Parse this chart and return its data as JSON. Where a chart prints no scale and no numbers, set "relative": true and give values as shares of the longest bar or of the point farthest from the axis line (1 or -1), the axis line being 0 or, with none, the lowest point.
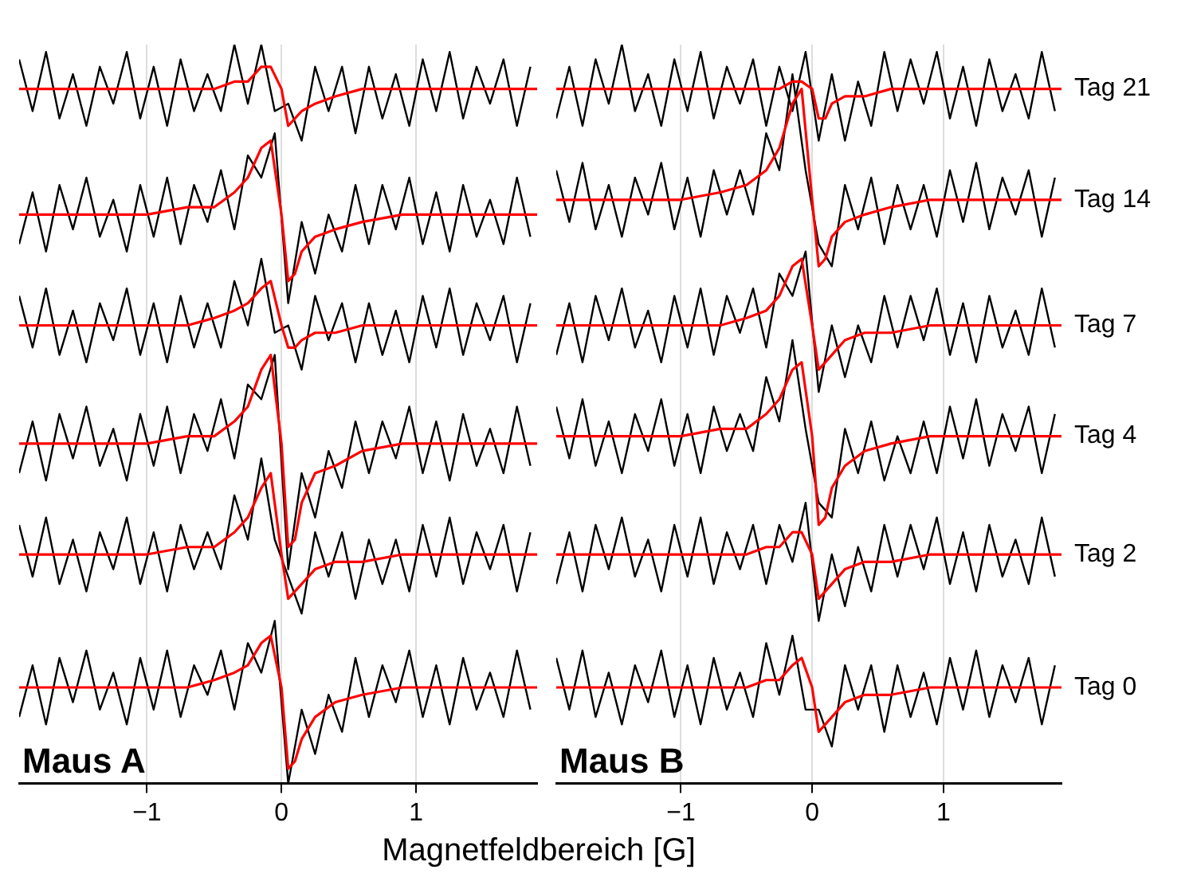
{
  "chart_data": [
    {
      "type": "line",
      "xlabel": "Magnetfeldbereich [G]",
      "x": [
        -1.95,
        -1.85,
        -1.75,
        -1.65,
        -1.55,
        -1.45,
        -1.35,
        -1.25,
        -1.15,
        -1.05,
        -0.95,
        -0.85,
        -0.75,
        -0.65,
        -0.55,
        -0.45,
        -0.35,
        -0.25,
        -0.15,
        -0.05,
        0.05,
        0.15,
        0.25,
        0.35,
        0.45,
        0.55,
        0.65,
        0.75,
        0.85,
        0.95,
        1.05,
        1.15,
        1.25,
        1.35,
        1.45,
        1.55,
        1.65,
        1.75,
        1.85
      ],
      "xlim": [
        -1.95,
        1.9
      ],
      "xticks": [
        -1,
        0,
        1
      ],
      "grid": "x",
      "relative": true,
      "annotations": [
        "Maus A"
      ],
      "series": [
        {
          "color": "#000000",
          "values": [
            0.98,
            0.91,
            0.99,
            0.9,
            0.96,
            0.89,
            0.97,
            0.92,
            0.99,
            0.9,
            0.97,
            0.89,
            0.98,
            0.91,
            0.96,
            0.91,
            1.0,
            0.92,
            1.0,
            0.91,
            0.92,
            0.87,
            0.97,
            0.91,
            0.97,
            0.88,
            0.97,
            0.9,
            0.96,
            0.89,
            0.98,
            0.91,
            0.99,
            0.9,
            0.97,
            0.92,
            0.98,
            0.89,
            0.97
          ]
        },
        {
          "color": "#ff0000",
          "x": [
            -1.95,
            -1.5,
            -1,
            -0.7,
            -0.5,
            -0.35,
            -0.25,
            -0.15,
            -0.08,
            0,
            0.05,
            0.1,
            0.15,
            0.25,
            0.4,
            0.6,
            0.9,
            1.3,
            1.9
          ],
          "values": [
            0.94,
            0.94,
            0.94,
            0.94,
            0.94,
            0.95,
            0.95,
            0.97,
            0.97,
            0.94,
            0.89,
            0.9,
            0.91,
            0.92,
            0.93,
            0.94,
            0.94,
            0.94,
            0.94
          ]
        },
        {
          "color": "#000000",
          "values": [
            0.73,
            0.8,
            0.72,
            0.81,
            0.75,
            0.82,
            0.74,
            0.79,
            0.72,
            0.81,
            0.74,
            0.82,
            0.73,
            0.81,
            0.76,
            0.83,
            0.75,
            0.85,
            0.82,
            0.88,
            0.65,
            0.76,
            0.69,
            0.77,
            0.72,
            0.81,
            0.73,
            0.81,
            0.75,
            0.82,
            0.73,
            0.8,
            0.72,
            0.81,
            0.74,
            0.79,
            0.73,
            0.82,
            0.74
          ]
        },
        {
          "color": "#ff0000",
          "x": [
            -1.95,
            -1.5,
            -1,
            -0.7,
            -0.5,
            -0.35,
            -0.25,
            -0.15,
            -0.08,
            0,
            0.05,
            0.1,
            0.15,
            0.25,
            0.4,
            0.6,
            0.9,
            1.3,
            1.9
          ],
          "values": [
            0.77,
            0.77,
            0.77,
            0.78,
            0.78,
            0.8,
            0.82,
            0.86,
            0.87,
            0.77,
            0.68,
            0.69,
            0.72,
            0.74,
            0.75,
            0.76,
            0.77,
            0.77,
            0.77
          ]
        },
        {
          "color": "#000000",
          "values": [
            0.66,
            0.59,
            0.67,
            0.58,
            0.64,
            0.57,
            0.65,
            0.6,
            0.67,
            0.58,
            0.65,
            0.57,
            0.66,
            0.59,
            0.65,
            0.59,
            0.68,
            0.62,
            0.71,
            0.61,
            0.62,
            0.56,
            0.66,
            0.6,
            0.65,
            0.57,
            0.65,
            0.58,
            0.64,
            0.57,
            0.66,
            0.59,
            0.67,
            0.58,
            0.65,
            0.6,
            0.66,
            0.57,
            0.65
          ]
        },
        {
          "color": "#ff0000",
          "x": [
            -1.95,
            -1.5,
            -1,
            -0.7,
            -0.5,
            -0.35,
            -0.25,
            -0.15,
            -0.08,
            0,
            0.05,
            0.1,
            0.15,
            0.25,
            0.4,
            0.6,
            0.9,
            1.3,
            1.9
          ],
          "values": [
            0.62,
            0.62,
            0.62,
            0.62,
            0.63,
            0.64,
            0.65,
            0.67,
            0.68,
            0.62,
            0.59,
            0.59,
            0.6,
            0.61,
            0.61,
            0.62,
            0.62,
            0.62,
            0.62
          ]
        },
        {
          "color": "#000000",
          "values": [
            0.42,
            0.49,
            0.41,
            0.5,
            0.44,
            0.51,
            0.43,
            0.48,
            0.41,
            0.5,
            0.43,
            0.51,
            0.42,
            0.5,
            0.45,
            0.52,
            0.44,
            0.54,
            0.52,
            0.58,
            0.29,
            0.42,
            0.36,
            0.45,
            0.4,
            0.49,
            0.42,
            0.49,
            0.44,
            0.51,
            0.42,
            0.49,
            0.41,
            0.5,
            0.43,
            0.48,
            0.42,
            0.51,
            0.43
          ]
        },
        {
          "color": "#ff0000",
          "x": [
            -1.95,
            -1.5,
            -1,
            -0.7,
            -0.5,
            -0.35,
            -0.25,
            -0.15,
            -0.08,
            0,
            0.05,
            0.1,
            0.15,
            0.25,
            0.4,
            0.6,
            0.9,
            1.3,
            1.9
          ],
          "values": [
            0.46,
            0.46,
            0.46,
            0.47,
            0.47,
            0.49,
            0.51,
            0.56,
            0.58,
            0.46,
            0.32,
            0.33,
            0.38,
            0.42,
            0.43,
            0.45,
            0.46,
            0.46,
            0.46
          ]
        },
        {
          "color": "#000000",
          "values": [
            0.35,
            0.28,
            0.36,
            0.27,
            0.33,
            0.26,
            0.34,
            0.29,
            0.36,
            0.27,
            0.34,
            0.26,
            0.35,
            0.29,
            0.34,
            0.29,
            0.39,
            0.33,
            0.44,
            0.33,
            0.28,
            0.23,
            0.34,
            0.28,
            0.34,
            0.25,
            0.33,
            0.27,
            0.33,
            0.26,
            0.35,
            0.28,
            0.36,
            0.27,
            0.34,
            0.29,
            0.35,
            0.26,
            0.34
          ]
        },
        {
          "color": "#ff0000",
          "x": [
            -1.95,
            -1.5,
            -1,
            -0.7,
            -0.5,
            -0.35,
            -0.25,
            -0.15,
            -0.08,
            0,
            0.05,
            0.1,
            0.15,
            0.25,
            0.4,
            0.6,
            0.9,
            1.3,
            1.9
          ],
          "values": [
            0.31,
            0.31,
            0.31,
            0.32,
            0.32,
            0.34,
            0.36,
            0.4,
            0.42,
            0.31,
            0.25,
            0.26,
            0.27,
            0.29,
            0.3,
            0.3,
            0.31,
            0.31,
            0.31
          ]
        },
        {
          "color": "#000000",
          "values": [
            0.09,
            0.16,
            0.08,
            0.17,
            0.11,
            0.18,
            0.1,
            0.15,
            0.08,
            0.17,
            0.1,
            0.18,
            0.09,
            0.16,
            0.12,
            0.18,
            0.1,
            0.19,
            0.15,
            0.22,
            0.0,
            0.1,
            0.04,
            0.12,
            0.07,
            0.17,
            0.09,
            0.16,
            0.11,
            0.18,
            0.09,
            0.16,
            0.08,
            0.17,
            0.1,
            0.15,
            0.09,
            0.18,
            0.1
          ]
        },
        {
          "color": "#ff0000",
          "x": [
            -1.95,
            -1.5,
            -1,
            -0.7,
            -0.5,
            -0.35,
            -0.25,
            -0.15,
            -0.08,
            0,
            0.05,
            0.1,
            0.15,
            0.25,
            0.4,
            0.6,
            0.9,
            1.3,
            1.9
          ],
          "values": [
            0.13,
            0.13,
            0.13,
            0.13,
            0.14,
            0.15,
            0.16,
            0.19,
            0.2,
            0.13,
            0.02,
            0.03,
            0.06,
            0.09,
            0.11,
            0.12,
            0.13,
            0.13,
            0.13
          ]
        }
      ]
    },
    {
      "type": "line",
      "x": [
        -1.95,
        -1.85,
        -1.75,
        -1.65,
        -1.55,
        -1.45,
        -1.35,
        -1.25,
        -1.15,
        -1.05,
        -0.95,
        -0.85,
        -0.75,
        -0.65,
        -0.55,
        -0.45,
        -0.35,
        -0.25,
        -0.15,
        -0.05,
        0.05,
        0.15,
        0.25,
        0.35,
        0.45,
        0.55,
        0.65,
        0.75,
        0.85,
        0.95,
        1.05,
        1.15,
        1.25,
        1.35,
        1.45,
        1.55,
        1.65,
        1.75,
        1.85
      ],
      "xlim": [
        -1.95,
        1.9
      ],
      "xticks": [
        -1,
        0,
        1
      ],
      "grid": "x",
      "relative": true,
      "annotations": [
        "Maus B"
      ],
      "series": [
        {
          "color": "#000000",
          "values": [
            0.9,
            0.97,
            0.89,
            0.98,
            0.92,
            1.0,
            0.91,
            0.96,
            0.89,
            0.98,
            0.91,
            0.99,
            0.9,
            0.97,
            0.92,
            0.98,
            0.89,
            0.97,
            0.91,
            0.99,
            0.87,
            0.96,
            0.87,
            0.95,
            0.89,
            0.99,
            0.91,
            0.98,
            0.92,
            0.99,
            0.9,
            0.97,
            0.89,
            0.98,
            0.91,
            0.96,
            0.9,
            0.99,
            0.91
          ]
        },
        {
          "name": "Tag 21",
          "color": "#ff0000",
          "x": [
            -1.95,
            -1.5,
            -1,
            -0.7,
            -0.5,
            -0.35,
            -0.25,
            -0.15,
            -0.08,
            0,
            0.05,
            0.1,
            0.15,
            0.25,
            0.4,
            0.6,
            0.9,
            1.3,
            1.9
          ],
          "values": [
            0.94,
            0.94,
            0.94,
            0.94,
            0.94,
            0.94,
            0.94,
            0.95,
            0.95,
            0.94,
            0.9,
            0.9,
            0.92,
            0.93,
            0.93,
            0.94,
            0.94,
            0.94,
            0.94
          ]
        },
        {
          "color": "#000000",
          "values": [
            0.83,
            0.76,
            0.84,
            0.75,
            0.81,
            0.74,
            0.82,
            0.77,
            0.84,
            0.75,
            0.82,
            0.74,
            0.83,
            0.77,
            0.83,
            0.77,
            0.88,
            0.83,
            0.96,
            0.83,
            0.73,
            0.7,
            0.81,
            0.75,
            0.82,
            0.73,
            0.81,
            0.75,
            0.81,
            0.74,
            0.83,
            0.76,
            0.84,
            0.75,
            0.82,
            0.77,
            0.83,
            0.74,
            0.82
          ]
        },
        {
          "name": "Tag 14",
          "color": "#ff0000",
          "x": [
            -1.95,
            -1.5,
            -1,
            -0.7,
            -0.5,
            -0.35,
            -0.25,
            -0.15,
            -0.08,
            0,
            0.05,
            0.1,
            0.15,
            0.25,
            0.4,
            0.6,
            0.9,
            1.3,
            1.9
          ],
          "values": [
            0.79,
            0.79,
            0.79,
            0.8,
            0.81,
            0.83,
            0.86,
            0.92,
            0.94,
            0.79,
            0.7,
            0.71,
            0.74,
            0.76,
            0.77,
            0.78,
            0.79,
            0.79,
            0.79
          ]
        },
        {
          "color": "#000000",
          "values": [
            0.58,
            0.65,
            0.57,
            0.66,
            0.6,
            0.67,
            0.59,
            0.64,
            0.57,
            0.66,
            0.59,
            0.67,
            0.58,
            0.66,
            0.61,
            0.67,
            0.59,
            0.69,
            0.66,
            0.72,
            0.53,
            0.62,
            0.55,
            0.62,
            0.57,
            0.66,
            0.59,
            0.66,
            0.6,
            0.67,
            0.58,
            0.65,
            0.57,
            0.66,
            0.59,
            0.64,
            0.58,
            0.67,
            0.59
          ]
        },
        {
          "name": "Tag 7",
          "color": "#ff0000",
          "x": [
            -1.95,
            -1.5,
            -1,
            -0.7,
            -0.5,
            -0.35,
            -0.25,
            -0.15,
            -0.08,
            0,
            0.05,
            0.1,
            0.15,
            0.25,
            0.4,
            0.6,
            0.9,
            1.3,
            1.9
          ],
          "values": [
            0.62,
            0.62,
            0.62,
            0.62,
            0.63,
            0.64,
            0.66,
            0.7,
            0.71,
            0.62,
            0.56,
            0.57,
            0.58,
            0.6,
            0.61,
            0.61,
            0.62,
            0.62,
            0.62
          ]
        },
        {
          "color": "#000000",
          "values": [
            0.51,
            0.44,
            0.52,
            0.43,
            0.49,
            0.42,
            0.5,
            0.45,
            0.52,
            0.43,
            0.5,
            0.42,
            0.51,
            0.45,
            0.5,
            0.45,
            0.55,
            0.49,
            0.6,
            0.48,
            0.38,
            0.36,
            0.48,
            0.42,
            0.49,
            0.41,
            0.47,
            0.42,
            0.49,
            0.42,
            0.51,
            0.44,
            0.52,
            0.43,
            0.5,
            0.45,
            0.51,
            0.42,
            0.5
          ]
        },
        {
          "name": "Tag 4",
          "color": "#ff0000",
          "x": [
            -1.95,
            -1.5,
            -1,
            -0.7,
            -0.5,
            -0.35,
            -0.25,
            -0.15,
            -0.08,
            0,
            0.05,
            0.1,
            0.15,
            0.25,
            0.4,
            0.6,
            0.9,
            1.3,
            1.9
          ],
          "values": [
            0.47,
            0.47,
            0.47,
            0.48,
            0.48,
            0.5,
            0.52,
            0.56,
            0.57,
            0.47,
            0.35,
            0.36,
            0.4,
            0.43,
            0.45,
            0.46,
            0.47,
            0.47,
            0.47
          ]
        },
        {
          "color": "#000000",
          "values": [
            0.27,
            0.34,
            0.26,
            0.35,
            0.29,
            0.36,
            0.28,
            0.33,
            0.26,
            0.35,
            0.28,
            0.36,
            0.27,
            0.34,
            0.29,
            0.35,
            0.27,
            0.35,
            0.3,
            0.38,
            0.22,
            0.31,
            0.24,
            0.32,
            0.26,
            0.35,
            0.28,
            0.35,
            0.29,
            0.36,
            0.27,
            0.34,
            0.26,
            0.35,
            0.28,
            0.33,
            0.27,
            0.36,
            0.28
          ]
        },
        {
          "name": "Tag 2",
          "color": "#ff0000",
          "x": [
            -1.95,
            -1.5,
            -1,
            -0.7,
            -0.5,
            -0.35,
            -0.25,
            -0.15,
            -0.08,
            0,
            0.05,
            0.1,
            0.15,
            0.25,
            0.4,
            0.6,
            0.9,
            1.3,
            1.9
          ],
          "values": [
            0.31,
            0.31,
            0.31,
            0.31,
            0.31,
            0.32,
            0.32,
            0.34,
            0.34,
            0.31,
            0.25,
            0.26,
            0.27,
            0.29,
            0.3,
            0.3,
            0.31,
            0.31,
            0.31
          ]
        },
        {
          "color": "#000000",
          "values": [
            0.17,
            0.1,
            0.18,
            0.09,
            0.15,
            0.08,
            0.16,
            0.11,
            0.18,
            0.09,
            0.16,
            0.08,
            0.17,
            0.1,
            0.15,
            0.09,
            0.19,
            0.12,
            0.2,
            0.1,
            0.1,
            0.05,
            0.16,
            0.1,
            0.16,
            0.07,
            0.16,
            0.09,
            0.15,
            0.08,
            0.17,
            0.1,
            0.18,
            0.09,
            0.16,
            0.11,
            0.17,
            0.08,
            0.16
          ]
        },
        {
          "name": "Tag 0",
          "color": "#ff0000",
          "x": [
            -1.95,
            -1.5,
            -1,
            -0.7,
            -0.5,
            -0.35,
            -0.25,
            -0.15,
            -0.08,
            0,
            0.05,
            0.1,
            0.15,
            0.25,
            0.4,
            0.6,
            0.9,
            1.3,
            1.9
          ],
          "values": [
            0.13,
            0.13,
            0.13,
            0.13,
            0.13,
            0.14,
            0.14,
            0.16,
            0.17,
            0.13,
            0.07,
            0.08,
            0.09,
            0.11,
            0.12,
            0.12,
            0.13,
            0.13,
            0.13
          ]
        }
      ]
    }
  ]
}
